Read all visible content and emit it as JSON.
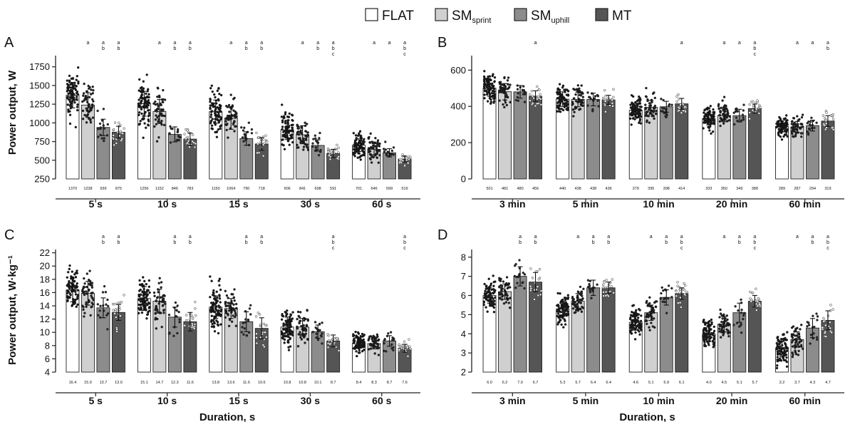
{
  "legend": {
    "items": [
      {
        "key": "FLAT",
        "label": "FLAT",
        "sub": "",
        "color": "#ffffff"
      },
      {
        "key": "SM_sprint",
        "label": "SM",
        "sub": "sprint",
        "color": "#d0d0d0"
      },
      {
        "key": "SM_uphill",
        "label": "SM",
        "sub": "uphill",
        "color": "#8c8c8c"
      },
      {
        "key": "MT",
        "label": "MT",
        "sub": "",
        "color": "#555555"
      }
    ]
  },
  "chart_data": [
    {
      "panel": "A",
      "type": "bar",
      "ylabel": "Power output, W",
      "xlabel": "",
      "ylim": [
        250,
        1900
      ],
      "yticks": [
        250,
        500,
        750,
        1000,
        1250,
        1500,
        1750
      ],
      "categories": [
        "5 s",
        "10 s",
        "15 s",
        "30 s",
        "60 s"
      ],
      "series": [
        {
          "name": "FLAT",
          "values": [
            1370,
            1256,
            1150,
            906,
            701
          ],
          "labels": [
            "1370",
            "1256",
            "1150",
            "906",
            "701"
          ],
          "sd": [
            170,
            165,
            155,
            130,
            85
          ]
        },
        {
          "name": "SM_sprint",
          "values": [
            1238,
            1152,
            1064,
            841,
            646
          ],
          "labels": [
            "1238",
            "1152",
            "1064",
            "841",
            "646"
          ],
          "sd": [
            165,
            160,
            150,
            120,
            75
          ]
        },
        {
          "name": "SM_uphill",
          "values": [
            939,
            846,
            790,
            698,
            599
          ],
          "labels": [
            "939",
            "846",
            "790",
            "698",
            "599"
          ],
          "sd": [
            110,
            100,
            90,
            75,
            55
          ]
        },
        {
          "name": "MT",
          "values": [
            875,
            783,
            718,
            591,
            516
          ],
          "labels": [
            "875",
            "783",
            "718",
            "591",
            "516"
          ],
          "sd": [
            80,
            80,
            85,
            55,
            40
          ]
        }
      ],
      "sig": [
        [
          [],
          [
            "a"
          ],
          [
            "a",
            "b"
          ],
          [
            "a",
            "b"
          ]
        ],
        [
          [],
          [
            "a"
          ],
          [
            "a",
            "b"
          ],
          [
            "a",
            "b"
          ]
        ],
        [
          [],
          [
            "a"
          ],
          [
            "a",
            "b"
          ],
          [
            "a",
            "b"
          ]
        ],
        [
          [],
          [
            "a"
          ],
          [
            "a",
            "b"
          ],
          [
            "a",
            "b",
            "c"
          ]
        ],
        [
          [],
          [
            "a"
          ],
          [
            "a"
          ],
          [
            "a",
            "b",
            "c"
          ]
        ]
      ]
    },
    {
      "panel": "B",
      "type": "bar",
      "ylabel": "",
      "xlabel": "",
      "ylim": [
        0,
        680
      ],
      "yticks": [
        0,
        200,
        400,
        600
      ],
      "categories": [
        "3 min",
        "5 min",
        "10 min",
        "20 min",
        "60 min"
      ],
      "series": [
        {
          "name": "FLAT",
          "values": [
            501,
            440,
            379,
            333,
            289
          ],
          "labels": [
            "501",
            "440",
            "379",
            "333",
            "289"
          ],
          "sd": [
            45,
            40,
            38,
            35,
            30
          ]
        },
        {
          "name": "SM_sprint",
          "values": [
            481,
            438,
            395,
            350,
            287
          ],
          "labels": [
            "481",
            "438",
            "395",
            "350",
            "287"
          ],
          "sd": [
            45,
            40,
            38,
            35,
            30
          ]
        },
        {
          "name": "SM_uphill",
          "values": [
            480,
            438,
            398,
            349,
            294
          ],
          "labels": [
            "480",
            "438",
            "398",
            "349",
            "294"
          ],
          "sd": [
            35,
            35,
            30,
            35,
            30
          ]
        },
        {
          "name": "MT",
          "values": [
            456,
            436,
            414,
            388,
            319
          ],
          "labels": [
            "456",
            "436",
            "414",
            "388",
            "319"
          ],
          "sd": [
            30,
            25,
            30,
            25,
            30
          ]
        }
      ],
      "sig": [
        [
          [],
          [],
          [],
          [
            "a"
          ]
        ],
        [
          [],
          [],
          [],
          []
        ],
        [
          [],
          [],
          [],
          [
            "a"
          ]
        ],
        [
          [],
          [
            "a"
          ],
          [
            "a"
          ],
          [
            "a",
            "b",
            "c"
          ]
        ],
        [
          [],
          [
            "a"
          ],
          [
            "a"
          ],
          [
            "a",
            "b"
          ]
        ]
      ]
    },
    {
      "panel": "C",
      "type": "bar",
      "ylabel": "Power output, W·kg⁻¹",
      "xlabel": "Duration, s",
      "ylim": [
        4,
        22.5
      ],
      "yticks": [
        4,
        6,
        8,
        10,
        12,
        14,
        16,
        18,
        20,
        22
      ],
      "categories": [
        "5 s",
        "10 s",
        "15 s",
        "30 s",
        "60 s"
      ],
      "series": [
        {
          "name": "FLAT",
          "values": [
            16.4,
            15.1,
            13.8,
            10.8,
            8.4
          ],
          "labels": [
            "16.4",
            "15.1",
            "13.8",
            "10.8",
            "8.4"
          ],
          "sd": [
            1.8,
            1.8,
            1.7,
            1.5,
            0.8
          ]
        },
        {
          "name": "SM_sprint",
          "values": [
            15.9,
            14.7,
            13.6,
            10.8,
            8.3
          ],
          "labels": [
            "15.9",
            "14.7",
            "13.6",
            "10.8",
            "8.3"
          ],
          "sd": [
            1.8,
            1.8,
            1.5,
            1.3,
            0.8
          ]
        },
        {
          "name": "SM_uphill",
          "values": [
            13.7,
            12.3,
            11.6,
            10.1,
            8.7
          ],
          "labels": [
            "13.7",
            "12.3",
            "11.6",
            "10.1",
            "8.7"
          ],
          "sd": [
            1.5,
            1.5,
            1.5,
            1.0,
            0.8
          ]
        },
        {
          "name": "MT",
          "values": [
            13.0,
            11.6,
            10.6,
            8.7,
            7.6
          ],
          "labels": [
            "13.0",
            "11.6",
            "10.6",
            "8.7",
            "7.6"
          ],
          "sd": [
            1.2,
            1.4,
            1.6,
            0.9,
            0.6
          ]
        }
      ],
      "sig": [
        [
          [],
          [],
          [
            "a",
            "b"
          ],
          [
            "a",
            "b"
          ]
        ],
        [
          [],
          [],
          [
            "a",
            "b"
          ],
          [
            "a",
            "b"
          ]
        ],
        [
          [],
          [],
          [
            "a",
            "b"
          ],
          [
            "a",
            "b"
          ]
        ],
        [
          [],
          [],
          [],
          [
            "a",
            "b",
            "c"
          ]
        ],
        [
          [],
          [],
          [],
          [
            "a",
            "b",
            "c"
          ]
        ]
      ]
    },
    {
      "panel": "D",
      "type": "bar",
      "ylabel": "",
      "xlabel": "Duration, s",
      "ylim": [
        2,
        8.4
      ],
      "yticks": [
        2,
        3,
        4,
        5,
        6,
        7,
        8
      ],
      "categories": [
        "3 min",
        "5 min",
        "10 min",
        "20 min",
        "60 min"
      ],
      "series": [
        {
          "name": "FLAT",
          "values": [
            6.0,
            5.3,
            4.6,
            4.0,
            3.2
          ],
          "labels": [
            "6.0",
            "5.3",
            "4.6",
            "4.0",
            "3.2"
          ],
          "sd": [
            0.4,
            0.4,
            0.4,
            0.4,
            0.4
          ]
        },
        {
          "name": "SM_sprint",
          "values": [
            6.2,
            5.7,
            5.1,
            4.5,
            3.7
          ],
          "labels": [
            "6.2",
            "5.7",
            "5.1",
            "4.5",
            "3.7"
          ],
          "sd": [
            0.4,
            0.4,
            0.4,
            0.4,
            0.4
          ]
        },
        {
          "name": "SM_uphill",
          "values": [
            7.0,
            6.4,
            5.9,
            5.1,
            4.3
          ],
          "labels": [
            "7.0",
            "6.4",
            "5.9",
            "5.1",
            "4.3"
          ],
          "sd": [
            0.5,
            0.4,
            0.4,
            0.5,
            0.5
          ]
        },
        {
          "name": "MT",
          "values": [
            6.7,
            6.4,
            6.1,
            5.7,
            4.7
          ],
          "labels": [
            "6.7",
            "6.4",
            "6.1",
            "5.7",
            "4.7"
          ],
          "sd": [
            0.5,
            0.3,
            0.3,
            0.3,
            0.5
          ]
        }
      ],
      "sig": [
        [
          [],
          [],
          [
            "a",
            "b"
          ],
          [
            "a",
            "b"
          ]
        ],
        [
          [],
          [
            "a"
          ],
          [
            "a",
            "b"
          ],
          [
            "a",
            "b"
          ]
        ],
        [
          [],
          [
            "a"
          ],
          [
            "a",
            "b"
          ],
          [
            "a",
            "b",
            "c"
          ]
        ],
        [
          [],
          [
            "a"
          ],
          [
            "a",
            "b"
          ],
          [
            "a",
            "b",
            "c"
          ]
        ],
        [
          [],
          [
            "a"
          ],
          [
            "a",
            "b"
          ],
          [
            "a",
            "b",
            "c"
          ]
        ]
      ]
    }
  ]
}
